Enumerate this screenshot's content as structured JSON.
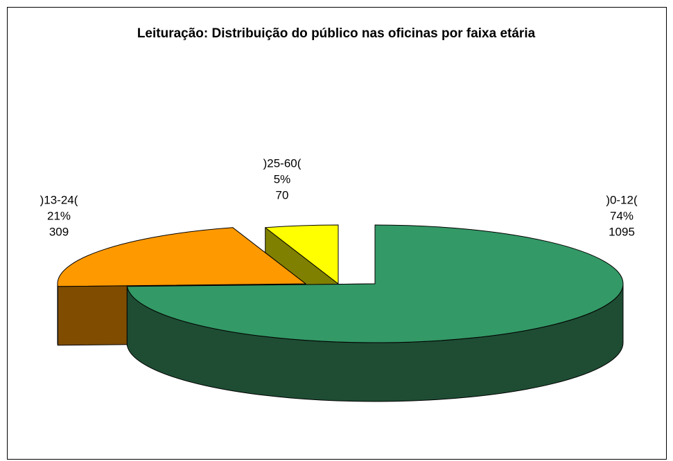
{
  "chart_data": {
    "type": "pie",
    "title": "Leituração: Distribuição do público nas oficinas por faixa etária",
    "categories": [
      ")0-12(",
      ")13-24(",
      ")25-60("
    ],
    "values": [
      1095,
      309,
      70
    ],
    "percentages": [
      74,
      21,
      5
    ],
    "percentage_labels": [
      "74%",
      "21%",
      "5%"
    ],
    "colors": [
      "#339966",
      "#ff9900",
      "#ffff00"
    ],
    "side_colors": [
      "#1e4d33",
      "#7f4c00",
      "#808000"
    ]
  }
}
